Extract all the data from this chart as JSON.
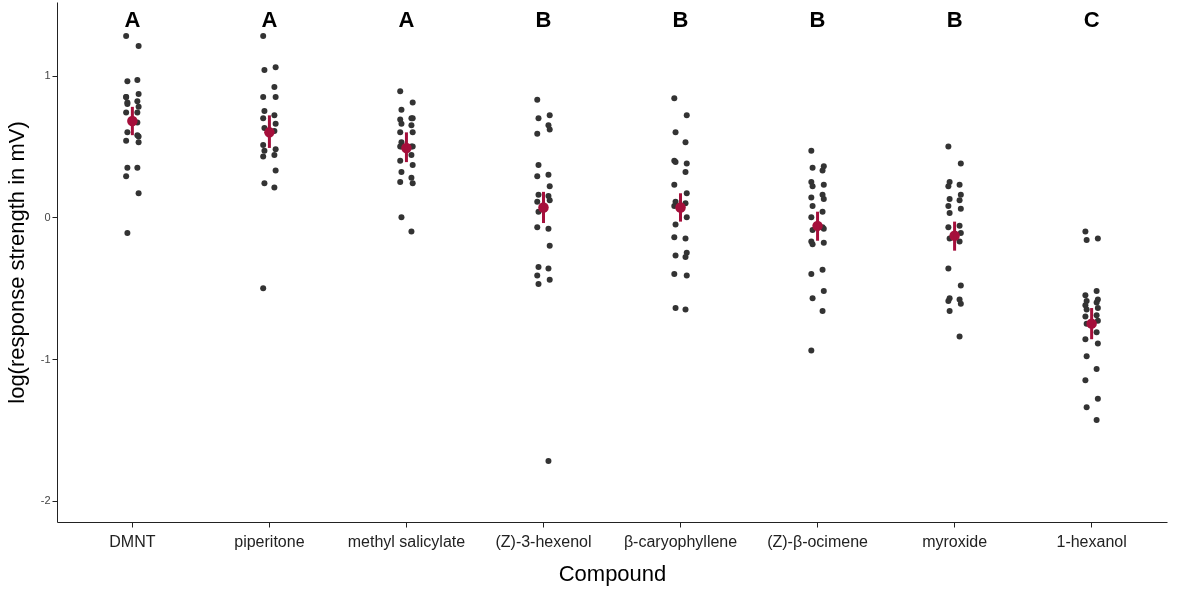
{
  "chart_data": {
    "type": "scatter",
    "xlabel": "Compound",
    "ylabel": "log(response strength  in mV)",
    "categories": [
      "DMNT",
      "piperitone",
      "methyl salicylate",
      "(Z)-3-hexenol",
      "β-caryophyllene",
      "(Z)-β-ocimene",
      "myroxide",
      "1-hexanol"
    ],
    "ylim": [
      -2.15,
      1.52
    ],
    "yticks": [
      -2,
      -1,
      0,
      1
    ],
    "grid": false,
    "marker": "circle",
    "series": [
      {
        "color": "#333333",
        "x": [
          "DMNT",
          "DMNT",
          "DMNT",
          "DMNT",
          "DMNT",
          "DMNT",
          "DMNT",
          "DMNT",
          "DMNT",
          "DMNT",
          "DMNT",
          "DMNT",
          "DMNT",
          "DMNT",
          "DMNT",
          "DMNT",
          "DMNT",
          "DMNT",
          "DMNT",
          "DMNT",
          "DMNT",
          "DMNT",
          "DMNT",
          "DMNT",
          "piperitone",
          "piperitone",
          "piperitone",
          "piperitone",
          "piperitone",
          "piperitone",
          "piperitone",
          "piperitone",
          "piperitone",
          "piperitone",
          "piperitone",
          "piperitone",
          "piperitone",
          "piperitone",
          "piperitone",
          "piperitone",
          "piperitone",
          "piperitone",
          "piperitone",
          "piperitone",
          "piperitone",
          "methyl salicylate",
          "methyl salicylate",
          "methyl salicylate",
          "methyl salicylate",
          "methyl salicylate",
          "methyl salicylate",
          "methyl salicylate",
          "methyl salicylate",
          "methyl salicylate",
          "methyl salicylate",
          "methyl salicylate",
          "methyl salicylate",
          "methyl salicylate",
          "methyl salicylate",
          "methyl salicylate",
          "methyl salicylate",
          "methyl salicylate",
          "methyl salicylate",
          "methyl salicylate",
          "methyl salicylate",
          "methyl salicylate",
          "methyl salicylate",
          "methyl salicylate",
          "methyl salicylate",
          "(Z)-3-hexenol",
          "(Z)-3-hexenol",
          "(Z)-3-hexenol",
          "(Z)-3-hexenol",
          "(Z)-3-hexenol",
          "(Z)-3-hexenol",
          "(Z)-3-hexenol",
          "(Z)-3-hexenol",
          "(Z)-3-hexenol",
          "(Z)-3-hexenol",
          "(Z)-3-hexenol",
          "(Z)-3-hexenol",
          "(Z)-3-hexenol",
          "(Z)-3-hexenol",
          "(Z)-3-hexenol",
          "(Z)-3-hexenol",
          "(Z)-3-hexenol",
          "(Z)-3-hexenol",
          "(Z)-3-hexenol",
          "(Z)-3-hexenol",
          "(Z)-3-hexenol",
          "(Z)-3-hexenol",
          "(Z)-3-hexenol",
          "(Z)-3-hexenol",
          "β-caryophyllene",
          "β-caryophyllene",
          "β-caryophyllene",
          "β-caryophyllene",
          "β-caryophyllene",
          "β-caryophyllene",
          "β-caryophyllene",
          "β-caryophyllene",
          "β-caryophyllene",
          "β-caryophyllene",
          "β-caryophyllene",
          "β-caryophyllene",
          "β-caryophyllene",
          "β-caryophyllene",
          "β-caryophyllene",
          "β-caryophyllene",
          "β-caryophyllene",
          "β-caryophyllene",
          "β-caryophyllene",
          "β-caryophyllene",
          "β-caryophyllene",
          "β-caryophyllene",
          "β-caryophyllene",
          "β-caryophyllene",
          "(Z)-β-ocimene",
          "(Z)-β-ocimene",
          "(Z)-β-ocimene",
          "(Z)-β-ocimene",
          "(Z)-β-ocimene",
          "(Z)-β-ocimene",
          "(Z)-β-ocimene",
          "(Z)-β-ocimene",
          "(Z)-β-ocimene",
          "(Z)-β-ocimene",
          "(Z)-β-ocimene",
          "(Z)-β-ocimene",
          "(Z)-β-ocimene",
          "(Z)-β-ocimene",
          "(Z)-β-ocimene",
          "(Z)-β-ocimene",
          "(Z)-β-ocimene",
          "(Z)-β-ocimene",
          "(Z)-β-ocimene",
          "(Z)-β-ocimene",
          "(Z)-β-ocimene",
          "(Z)-β-ocimene",
          "(Z)-β-ocimene",
          "(Z)-β-ocimene",
          "(Z)-β-ocimene",
          "myroxide",
          "myroxide",
          "myroxide",
          "myroxide",
          "myroxide",
          "myroxide",
          "myroxide",
          "myroxide",
          "myroxide",
          "myroxide",
          "myroxide",
          "myroxide",
          "myroxide",
          "myroxide",
          "myroxide",
          "myroxide",
          "myroxide",
          "myroxide",
          "myroxide",
          "myroxide",
          "myroxide",
          "myroxide",
          "myroxide",
          "myroxide",
          "1-hexanol",
          "1-hexanol",
          "1-hexanol",
          "1-hexanol",
          "1-hexanol",
          "1-hexanol",
          "1-hexanol",
          "1-hexanol",
          "1-hexanol",
          "1-hexanol",
          "1-hexanol",
          "1-hexanol",
          "1-hexanol",
          "1-hexanol",
          "1-hexanol",
          "1-hexanol",
          "1-hexanol",
          "1-hexanol",
          "1-hexanol",
          "1-hexanol",
          "1-hexanol",
          "1-hexanol",
          "1-hexanol",
          "1-hexanol"
        ],
        "values": [
          1.28,
          1.21,
          0.96,
          0.97,
          0.85,
          0.87,
          0.8,
          0.82,
          0.85,
          0.78,
          0.81,
          0.74,
          0.74,
          0.57,
          0.6,
          0.58,
          0.54,
          0.53,
          0.35,
          0.35,
          0.29,
          0.17,
          -0.11,
          0.67,
          1.28,
          1.06,
          1.04,
          0.92,
          0.85,
          0.85,
          0.75,
          0.72,
          0.7,
          0.66,
          0.63,
          0.61,
          0.51,
          0.48,
          0.47,
          0.44,
          0.43,
          0.33,
          0.24,
          0.21,
          -0.5,
          0.89,
          0.81,
          0.76,
          0.7,
          0.69,
          0.7,
          0.66,
          0.65,
          0.6,
          0.6,
          0.53,
          0.5,
          0.5,
          0.5,
          0.5,
          0.44,
          0.4,
          0.37,
          0.32,
          0.28,
          0.25,
          0.24,
          0.0,
          -0.1,
          0.83,
          0.72,
          0.7,
          0.65,
          0.59,
          0.62,
          0.37,
          0.3,
          0.29,
          0.22,
          0.16,
          0.15,
          0.11,
          0.12,
          0.04,
          -0.08,
          -0.07,
          -0.2,
          -0.35,
          -0.36,
          -0.41,
          -0.44,
          -0.47,
          -1.72,
          0.84,
          0.72,
          0.6,
          0.53,
          0.4,
          0.38,
          0.39,
          0.32,
          0.23,
          0.17,
          0.11,
          0.1,
          0.08,
          0.0,
          -0.05,
          -0.15,
          -0.14,
          -0.25,
          -0.27,
          -0.28,
          -0.4,
          -0.41,
          -0.64,
          -0.65,
          0.47,
          0.36,
          0.35,
          0.33,
          0.25,
          0.23,
          0.22,
          0.16,
          0.14,
          0.13,
          0.08,
          0.04,
          0.0,
          -0.08,
          -0.09,
          -0.07,
          -0.17,
          -0.18,
          -0.19,
          -0.37,
          -0.4,
          -0.52,
          -0.57,
          -0.66,
          -0.94,
          0.5,
          0.38,
          0.25,
          0.23,
          0.22,
          0.16,
          0.13,
          0.12,
          0.08,
          0.06,
          0.03,
          -0.06,
          -0.07,
          -0.11,
          -0.15,
          -0.17,
          -0.36,
          -0.48,
          -0.57,
          -0.58,
          -0.59,
          -0.61,
          -0.66,
          -0.84,
          -0.1,
          -0.15,
          -0.16,
          -0.52,
          -0.55,
          -0.58,
          -0.59,
          -0.6,
          -0.62,
          -0.64,
          -0.65,
          -0.69,
          -0.7,
          -0.73,
          -0.75,
          -0.81,
          -0.86,
          -0.89,
          -0.98,
          -1.07,
          -1.15,
          -1.28,
          -1.34,
          -1.43
        ]
      },
      {
        "color": "#a50f3b",
        "x": [
          "DMNT",
          "piperitone",
          "methyl salicylate",
          "(Z)-3-hexenol",
          "β-caryophyllene",
          "(Z)-β-ocimene",
          "myroxide",
          "1-hexanol"
        ],
        "values": [
          0.68,
          0.6,
          0.49,
          0.07,
          0.07,
          -0.06,
          -0.13,
          -0.75
        ],
        "errors": [
          [
            0.58,
            0.78
          ],
          [
            0.49,
            0.72
          ],
          [
            0.39,
            0.6
          ],
          [
            -0.04,
            0.18
          ],
          [
            -0.03,
            0.17
          ],
          [
            -0.165,
            0.04
          ],
          [
            -0.235,
            -0.03
          ],
          [
            -0.86,
            -0.64
          ]
        ]
      }
    ],
    "annotations": [
      "A",
      "A",
      "A",
      "B",
      "B",
      "B",
      "B",
      "C"
    ]
  }
}
